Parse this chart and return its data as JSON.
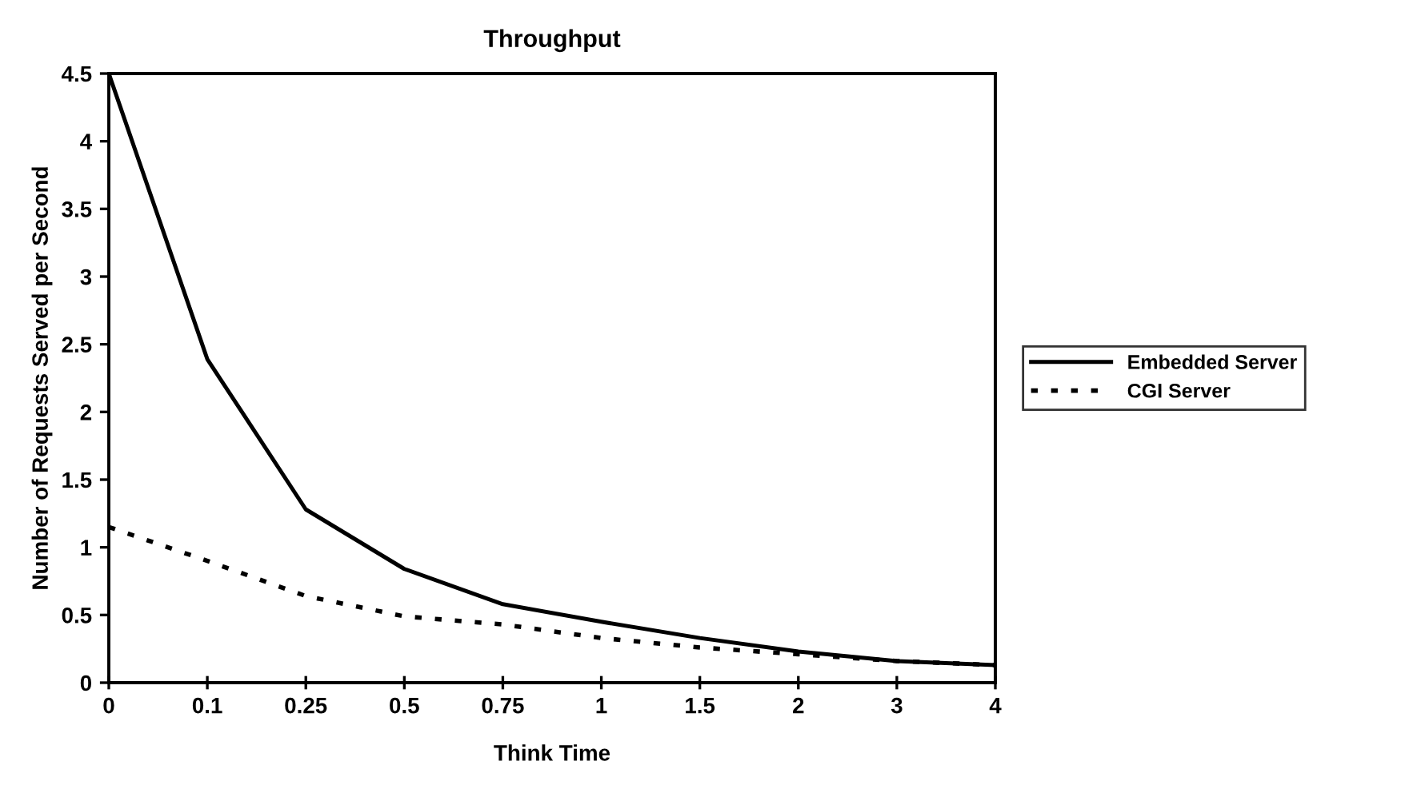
{
  "chart_data": {
    "type": "line",
    "title": "Throughput",
    "xlabel": "Think Time",
    "ylabel": "Number of Requests Served per Second",
    "categories": [
      "0",
      "0.1",
      "0.25",
      "0.5",
      "0.75",
      "1",
      "1.5",
      "2",
      "3",
      "4"
    ],
    "series": [
      {
        "name": "Embedded Server",
        "color": "#000000",
        "line_style": "solid",
        "values": [
          4.5,
          2.39,
          1.28,
          0.84,
          0.58,
          0.45,
          0.33,
          0.23,
          0.16,
          0.13
        ]
      },
      {
        "name": "CGI Server",
        "color": "#000000",
        "line_style": "dotted",
        "values": [
          1.15,
          0.9,
          0.64,
          0.49,
          0.43,
          0.33,
          0.26,
          0.21,
          0.16,
          0.13
        ]
      }
    ],
    "ylim": [
      0,
      4.5
    ],
    "yticks": [
      0,
      0.5,
      1,
      1.5,
      2,
      2.5,
      3,
      3.5,
      4,
      4.5
    ],
    "grid": false,
    "legend": "right",
    "marker": "none"
  }
}
